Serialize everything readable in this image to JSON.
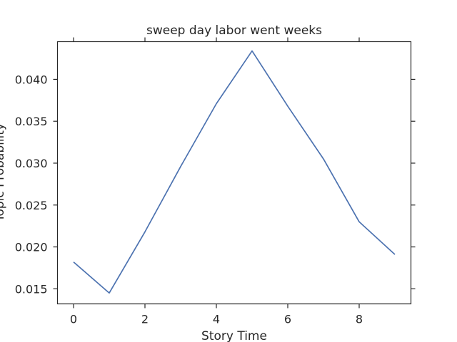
{
  "chart_data": {
    "type": "line",
    "title": "sweep day labor went weeks",
    "xlabel": "Story Time",
    "ylabel": "Topic Probability",
    "xlim": [
      -0.45,
      9.45
    ],
    "ylim": [
      0.0132,
      0.0445
    ],
    "xticks": [
      0,
      2,
      4,
      6,
      8
    ],
    "xtick_labels": [
      "0",
      "2",
      "4",
      "6",
      "8"
    ],
    "yticks": [
      0.015,
      0.02,
      0.025,
      0.03,
      0.035,
      0.04
    ],
    "ytick_labels": [
      "0.015",
      "0.020",
      "0.025",
      "0.030",
      "0.035",
      "0.040"
    ],
    "grid": false,
    "line_color": "#4c72b0",
    "series": [
      {
        "x": [
          0,
          1,
          2,
          3,
          4,
          5,
          6,
          7,
          8,
          9
        ],
        "values": [
          0.0182,
          0.0145,
          0.0218,
          0.0296,
          0.0371,
          0.0434,
          0.0368,
          0.0305,
          0.023,
          0.0191
        ]
      }
    ]
  }
}
